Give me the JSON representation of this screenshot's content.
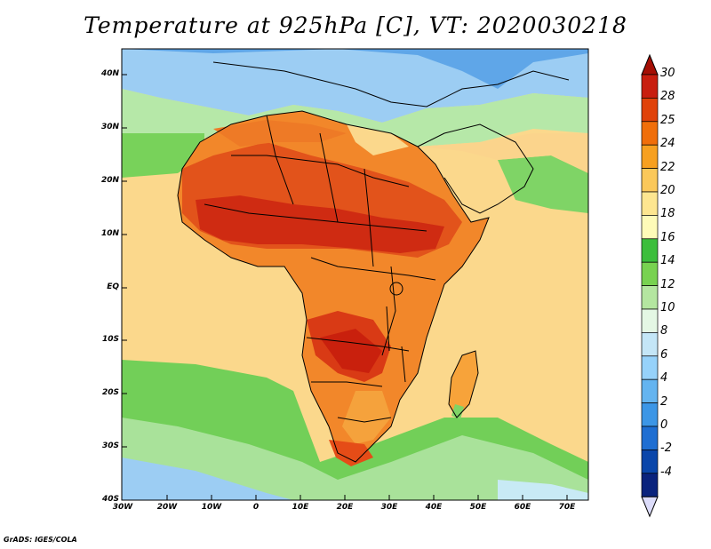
{
  "title": "Temperature at 925hPa [C], VT: 2020030218",
  "credit": "GrADS: IGES/COLA",
  "map": {
    "lat_labels": [
      "40N",
      "30N",
      "20N",
      "10N",
      "EQ",
      "10S",
      "20S",
      "30S",
      "40S"
    ],
    "lon_labels": [
      "30W",
      "20W",
      "10W",
      "0",
      "10E",
      "20E",
      "30E",
      "40E",
      "50E",
      "60E",
      "70E"
    ],
    "region": "Africa"
  },
  "colorbar": {
    "labels": [
      "30",
      "28",
      "25",
      "24",
      "22",
      "20",
      "18",
      "16",
      "14",
      "12",
      "10",
      "8",
      "6",
      "4",
      "2",
      "0",
      "-2",
      "-4"
    ],
    "colors": [
      "#c81e0f",
      "#e0420a",
      "#f06e0a",
      "#f7a020",
      "#fbc85a",
      "#fde690",
      "#fefbb8",
      "#3cbe3c",
      "#78d250",
      "#b4e6a0",
      "#e4f7e4",
      "#c4e6f7",
      "#96d2fa",
      "#64b4f0",
      "#3c96e6",
      "#1e6ed2",
      "#0a46aa",
      "#0a237d"
    ],
    "top_triangle_color": "#a50f05",
    "bottom_triangle_color": "#dcdcfa"
  },
  "colors": {
    "ocean_warm": "#fad796",
    "ocean_cool": "#fdeaa3",
    "ocean_green": "#7cd25a",
    "ocean_blue": "#a6d6f5",
    "land_hot": "#d2280f",
    "land_warm": "#ee6a14",
    "land_mild": "#f5a23c"
  }
}
